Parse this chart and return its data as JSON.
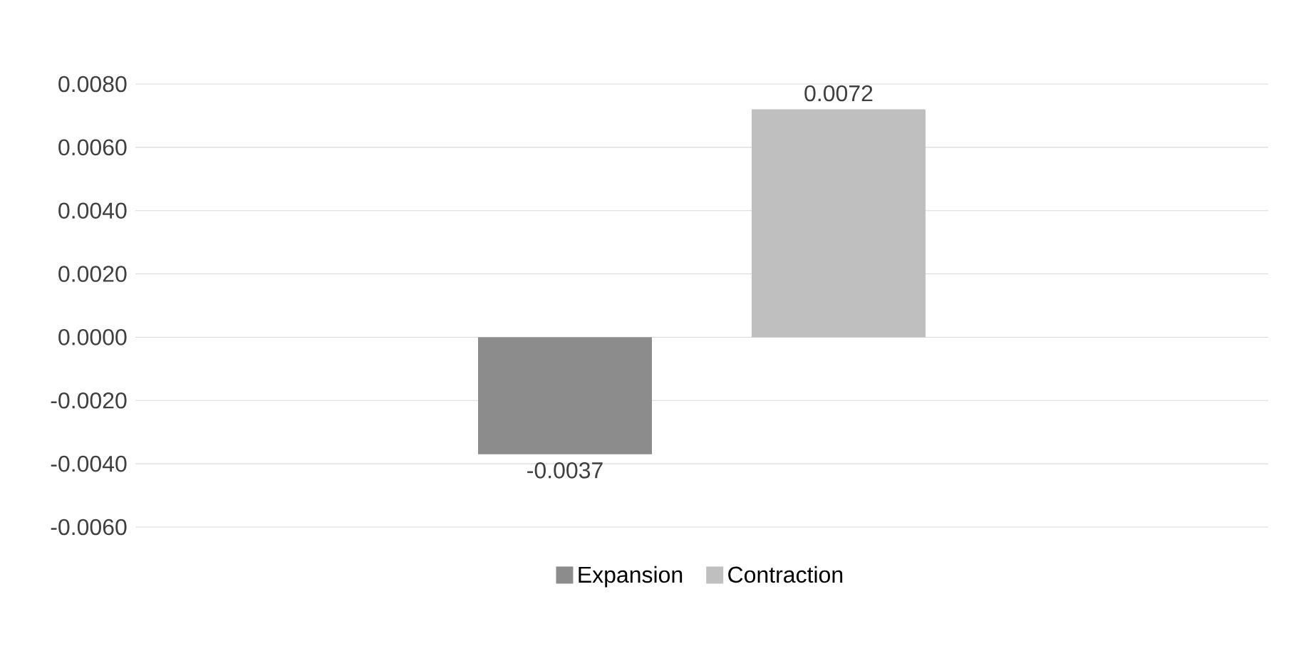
{
  "chart_data": {
    "type": "bar",
    "categories": [
      null
    ],
    "series": [
      {
        "name": "Expansion",
        "color": "#8c8c8c",
        "values": [
          -0.0037
        ]
      },
      {
        "name": "Contraction",
        "color": "#bfbfbf",
        "values": [
          0.0072
        ]
      }
    ],
    "ylim": [
      -0.006,
      0.008
    ],
    "yticks": [
      {
        "value": -0.006,
        "label": "-0.0060"
      },
      {
        "value": -0.004,
        "label": "-0.0040"
      },
      {
        "value": -0.002,
        "label": "-0.0020"
      },
      {
        "value": 0,
        "label": "0.0000"
      },
      {
        "value": 0.002,
        "label": "0.0020"
      },
      {
        "value": 0.004,
        "label": "0.0040"
      },
      {
        "value": 0.006,
        "label": "0.0060"
      },
      {
        "value": 0.008,
        "label": "0.0080"
      }
    ],
    "grid": "y",
    "legend": "bottom",
    "data_labels": true
  }
}
